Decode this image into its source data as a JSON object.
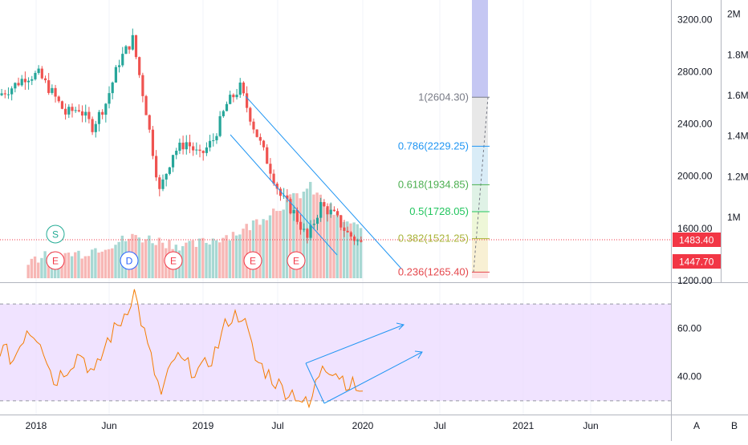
{
  "chart_data": [
    {
      "type": "candlestick",
      "title": "",
      "ylim": [
        1200,
        3300
      ],
      "y_ticks": [
        "3200.00",
        "2800.00",
        "2400.00",
        "2000.00",
        "1600.00",
        "1200.00"
      ],
      "volume_ticks": [
        "2M",
        "1.8M",
        "1.6M",
        "1.4M",
        "1.2M",
        "1M"
      ],
      "volume_ylim": [
        700000,
        2050000
      ],
      "x_ticks": [
        "2018",
        "Jun",
        "2019",
        "Jul",
        "2020",
        "Jul",
        "2021",
        "Jun"
      ],
      "price_tags": [
        {
          "label": "1483.40",
          "value": 1483.4,
          "color": "#f23645"
        },
        {
          "label": "1447.70",
          "value": 1447.7,
          "color": "#f23645"
        }
      ],
      "last_price_line": 1483.4,
      "series_close": [
        {
          "date": "2017-10",
          "close": 2620
        },
        {
          "date": "2017-11",
          "close": 2680
        },
        {
          "date": "2017-12",
          "close": 2760
        },
        {
          "date": "2018-01",
          "close": 2780
        },
        {
          "date": "2018-02",
          "close": 2640
        },
        {
          "date": "2018-03",
          "close": 2480
        },
        {
          "date": "2018-04",
          "close": 2520
        },
        {
          "date": "2018-05",
          "close": 2380
        },
        {
          "date": "2018-06",
          "close": 2560
        },
        {
          "date": "2018-07",
          "close": 2880
        },
        {
          "date": "2018-08",
          "close": 3050
        },
        {
          "date": "2018-09",
          "close": 2500
        },
        {
          "date": "2018-10",
          "close": 1880
        },
        {
          "date": "2018-11",
          "close": 2180
        },
        {
          "date": "2018-12",
          "close": 2260
        },
        {
          "date": "2019-01",
          "close": 2150
        },
        {
          "date": "2019-02",
          "close": 2280
        },
        {
          "date": "2019-03",
          "close": 2550
        },
        {
          "date": "2019-04",
          "close": 2680
        },
        {
          "date": "2019-05",
          "close": 2380
        },
        {
          "date": "2019-06",
          "close": 2120
        },
        {
          "date": "2019-07",
          "close": 1850
        },
        {
          "date": "2019-08",
          "close": 1720
        },
        {
          "date": "2019-09",
          "close": 1520
        },
        {
          "date": "2019-10",
          "close": 1780
        },
        {
          "date": "2019-11",
          "close": 1700
        },
        {
          "date": "2019-12",
          "close": 1560
        },
        {
          "date": "2020-01",
          "close": 1483
        }
      ],
      "volume": [
        {
          "date": "2017-12",
          "value": 790000
        },
        {
          "date": "2018-04",
          "value": 820000
        },
        {
          "date": "2018-08",
          "value": 900000
        },
        {
          "date": "2018-12",
          "value": 850000
        },
        {
          "date": "2019-04",
          "value": 930000
        },
        {
          "date": "2019-06",
          "value": 1020000
        },
        {
          "date": "2019-09",
          "value": 1140000
        },
        {
          "date": "2019-11",
          "value": 1000000
        },
        {
          "date": "2020-01",
          "value": 920000
        }
      ],
      "event_markers": [
        {
          "label": "S",
          "date": "2018-02",
          "kind": "split",
          "color": "#22ab94"
        },
        {
          "label": "E",
          "date": "2018-02",
          "kind": "earnings",
          "color": "#f23645"
        },
        {
          "label": "D",
          "date": "2018-07",
          "kind": "dividend",
          "color": "#2962ff"
        },
        {
          "label": "E",
          "date": "2018-10",
          "kind": "earnings",
          "color": "#f23645"
        },
        {
          "label": "E",
          "date": "2019-05",
          "kind": "earnings",
          "color": "#f23645"
        },
        {
          "label": "E",
          "date": "2019-08",
          "kind": "earnings",
          "color": "#f23645"
        }
      ],
      "fibonacci": [
        {
          "label": "1(2604.30)",
          "value": 2604.3,
          "color": "#787b86"
        },
        {
          "label": "0.786(2229.25)",
          "value": 2229.25,
          "color": "#2196f3"
        },
        {
          "label": "0.618(1934.85)",
          "value": 1934.85,
          "color": "#4caf50"
        },
        {
          "label": "0.5(1728.05)",
          "value": 1728.05,
          "color": "#22c55e"
        },
        {
          "label": "0.382(1521.25)",
          "value": 1521.25,
          "color": "#a9b43a"
        },
        {
          "label": "0.236(1265.40)",
          "value": 1265.4,
          "color": "#e5484d"
        }
      ],
      "channel_color": "#2196f3"
    },
    {
      "type": "line",
      "title": "",
      "ylim": [
        25,
        78
      ],
      "y_ticks": [
        "60.00",
        "40.00"
      ],
      "band": [
        30,
        70
      ],
      "band_color": "#ead7ff",
      "line_color": "#f57c00",
      "values": [
        {
          "date": "2017-10",
          "value": 52
        },
        {
          "date": "2017-11",
          "value": 47
        },
        {
          "date": "2017-12",
          "value": 60
        },
        {
          "date": "2018-01",
          "value": 56
        },
        {
          "date": "2018-02",
          "value": 38
        },
        {
          "date": "2018-03",
          "value": 44
        },
        {
          "date": "2018-04",
          "value": 50
        },
        {
          "date": "2018-05",
          "value": 40
        },
        {
          "date": "2018-06",
          "value": 55
        },
        {
          "date": "2018-07",
          "value": 63
        },
        {
          "date": "2018-08",
          "value": 75
        },
        {
          "date": "2018-09",
          "value": 52
        },
        {
          "date": "2018-10",
          "value": 32
        },
        {
          "date": "2018-11",
          "value": 48
        },
        {
          "date": "2018-12",
          "value": 44
        },
        {
          "date": "2019-01",
          "value": 42
        },
        {
          "date": "2019-02",
          "value": 50
        },
        {
          "date": "2019-03",
          "value": 64
        },
        {
          "date": "2019-04",
          "value": 66
        },
        {
          "date": "2019-05",
          "value": 47
        },
        {
          "date": "2019-06",
          "value": 41
        },
        {
          "date": "2019-07",
          "value": 35
        },
        {
          "date": "2019-08",
          "value": 33
        },
        {
          "date": "2019-09",
          "value": 27
        },
        {
          "date": "2019-10",
          "value": 46
        },
        {
          "date": "2019-11",
          "value": 42
        },
        {
          "date": "2019-12",
          "value": 37
        },
        {
          "date": "2020-01",
          "value": 34
        }
      ]
    }
  ],
  "scale_buttons": [
    "A",
    "B"
  ]
}
